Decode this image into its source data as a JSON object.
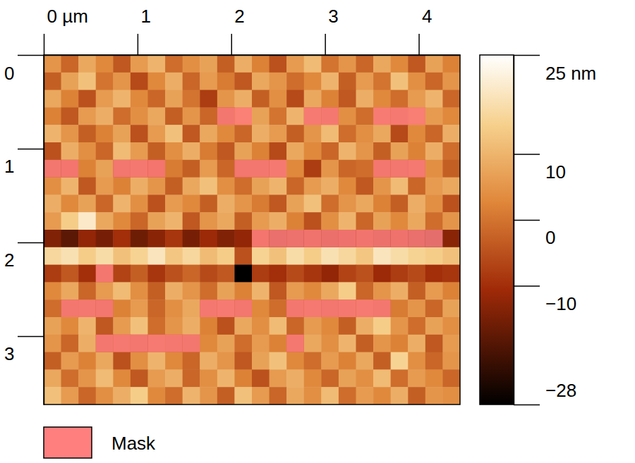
{
  "chart_data": {
    "type": "heatmap",
    "xlim": [
      0,
      4.44
    ],
    "ylim": [
      0,
      3.73
    ],
    "xticks": [
      {
        "value": 0,
        "label": "0 µm"
      },
      1,
      2,
      3,
      4
    ],
    "yticks": [
      0,
      1,
      2,
      3
    ],
    "z": [
      [
        5,
        -2,
        8,
        3,
        -4,
        6,
        10,
        -1,
        4,
        7,
        -3,
        9,
        2,
        -5,
        6,
        11,
        0,
        5,
        -2,
        8,
        3,
        -4,
        7,
        2
      ],
      [
        -3,
        7,
        12,
        0,
        5,
        -6,
        3,
        9,
        -2,
        6,
        1,
        -4,
        8,
        5,
        -1,
        3,
        10,
        -3,
        6,
        0,
        12,
        4,
        -2,
        5
      ],
      [
        8,
        2,
        -5,
        6,
        10,
        3,
        -2,
        7,
        0,
        -8,
        5,
        9,
        -3,
        4,
        -6,
        8,
        2,
        -4,
        9,
        3,
        -1,
        6,
        10,
        -2
      ],
      [
        2,
        -4,
        6,
        9,
        -1,
        4,
        8,
        -3,
        5,
        -2,
        -6,
        3,
        7,
        0,
        10,
        -3,
        -5,
        4,
        -1,
        -2,
        -4,
        1,
        6,
        3
      ],
      [
        10,
        5,
        -3,
        2,
        7,
        -5,
        6,
        12,
        -4,
        8,
        3,
        -2,
        9,
        6,
        -3,
        5,
        11,
        -1,
        4,
        8,
        -6,
        3,
        -2,
        9
      ],
      [
        -5,
        9,
        4,
        -2,
        11,
        6,
        -3,
        4,
        9,
        1,
        -4,
        7,
        2,
        -6,
        8,
        3,
        -2,
        10,
        5,
        -3,
        7,
        2,
        9,
        -1
      ],
      [
        -6,
        -8,
        2,
        7,
        -7,
        -5,
        -8,
        1,
        -3,
        6,
        -2,
        -7,
        -6,
        -4,
        3,
        -8,
        5,
        -2,
        -1,
        -6,
        -7,
        -4,
        4,
        -3
      ],
      [
        4,
        10,
        -4,
        6,
        2,
        9,
        5,
        -3,
        8,
        12,
        4,
        -1,
        7,
        10,
        -2,
        6,
        9,
        3,
        -4,
        5,
        11,
        -2,
        6,
        8
      ],
      [
        9,
        3,
        7,
        -2,
        10,
        4,
        -5,
        6,
        3,
        -3,
        9,
        5,
        1,
        -4,
        7,
        12,
        -1,
        5,
        8,
        2,
        -3,
        9,
        4,
        -5
      ],
      [
        6,
        14,
        20,
        8,
        3,
        -2,
        7,
        10,
        -4,
        5,
        8,
        -3,
        6,
        9,
        2,
        -5,
        4,
        10,
        -2,
        7,
        3,
        8,
        -1,
        5
      ],
      [
        -14,
        -18,
        -12,
        -15,
        -10,
        -16,
        -13,
        -9,
        -15,
        -11,
        -14,
        -12,
        -8,
        -16,
        -13,
        -10,
        -15,
        -12,
        -9,
        -14,
        -11,
        -16,
        -20,
        -13
      ],
      [
        16,
        18,
        14,
        17,
        12,
        15,
        19,
        13,
        16,
        11,
        14,
        -5,
        15,
        12,
        17,
        14,
        18,
        16,
        13,
        19,
        17,
        15,
        14,
        12
      ],
      [
        -8,
        -4,
        -10,
        -6,
        -7,
        -3,
        -9,
        -5,
        -2,
        -6,
        -4,
        -28,
        -8,
        -10,
        -6,
        -9,
        -12,
        -7,
        -5,
        -11,
        -8,
        -6,
        -10,
        -9
      ],
      [
        3,
        8,
        -2,
        6,
        11,
        4,
        -3,
        9,
        5,
        -1,
        7,
        2,
        10,
        -4,
        6,
        3,
        8,
        14,
        -2,
        5,
        9,
        -3,
        6,
        2
      ],
      [
        -1,
        -6,
        -5,
        -7,
        2,
        6,
        -2,
        4,
        8,
        -5,
        -3,
        -7,
        3,
        -1,
        -6,
        -4,
        -7,
        -5,
        -3,
        -6,
        1,
        5,
        -2,
        7
      ],
      [
        7,
        3,
        10,
        -4,
        6,
        12,
        -1,
        5,
        9,
        2,
        -5,
        8,
        4,
        11,
        -2,
        6,
        3,
        -3,
        9,
        14,
        5,
        -1,
        7,
        4
      ],
      [
        5,
        -2,
        9,
        -6,
        -4,
        -7,
        -3,
        -5,
        -6,
        3,
        7,
        -1,
        6,
        2,
        -5,
        8,
        4,
        10,
        -3,
        5,
        2,
        9,
        -4,
        6
      ],
      [
        -3,
        6,
        2,
        8,
        -5,
        4,
        10,
        3,
        -2,
        9,
        5,
        -4,
        7,
        12,
        3,
        -1,
        6,
        2,
        8,
        -3,
        15,
        4,
        -2,
        5
      ],
      [
        8,
        -1,
        5,
        11,
        3,
        -4,
        6,
        9,
        -2,
        4,
        10,
        2,
        -5,
        6,
        9,
        3,
        -2,
        7,
        4,
        11,
        -1,
        6,
        3,
        -2
      ],
      [
        12,
        6,
        -2,
        4,
        9,
        14,
        3,
        -1,
        10,
        5,
        -3,
        12,
        6,
        -2,
        8,
        4,
        11,
        -1,
        6,
        3,
        9,
        -3,
        5,
        4
      ]
    ],
    "mask": [
      [
        3,
        10
      ],
      [
        3,
        11
      ],
      [
        3,
        15
      ],
      [
        3,
        16
      ],
      [
        3,
        19
      ],
      [
        3,
        20
      ],
      [
        3,
        21
      ],
      [
        6,
        0
      ],
      [
        6,
        1
      ],
      [
        6,
        4
      ],
      [
        6,
        5
      ],
      [
        6,
        6
      ],
      [
        6,
        11
      ],
      [
        6,
        12
      ],
      [
        6,
        13
      ],
      [
        6,
        19
      ],
      [
        6,
        20
      ],
      [
        6,
        21
      ],
      [
        10,
        12
      ],
      [
        10,
        13
      ],
      [
        10,
        14
      ],
      [
        10,
        15
      ],
      [
        10,
        16
      ],
      [
        10,
        17
      ],
      [
        10,
        18
      ],
      [
        10,
        19
      ],
      [
        10,
        20
      ],
      [
        10,
        21
      ],
      [
        10,
        22
      ],
      [
        12,
        3
      ],
      [
        14,
        1
      ],
      [
        14,
        2
      ],
      [
        14,
        3
      ],
      [
        14,
        9
      ],
      [
        14,
        10
      ],
      [
        14,
        11
      ],
      [
        14,
        14
      ],
      [
        14,
        15
      ],
      [
        14,
        16
      ],
      [
        14,
        17
      ],
      [
        14,
        18
      ],
      [
        14,
        19
      ],
      [
        16,
        3
      ],
      [
        16,
        4
      ],
      [
        16,
        5
      ],
      [
        16,
        6
      ],
      [
        16,
        7
      ],
      [
        16,
        8
      ],
      [
        16,
        14
      ]
    ],
    "series": [
      {
        "name": "Mask",
        "color": "#ff7f7f"
      }
    ],
    "colorbar": {
      "range": [
        -28,
        25
      ],
      "ticks": [
        {
          "value": 25,
          "label": "25 nm"
        },
        10,
        0,
        {
          "value": -10,
          "label": "−10"
        },
        {
          "value": -28,
          "label": "−28"
        }
      ]
    }
  }
}
